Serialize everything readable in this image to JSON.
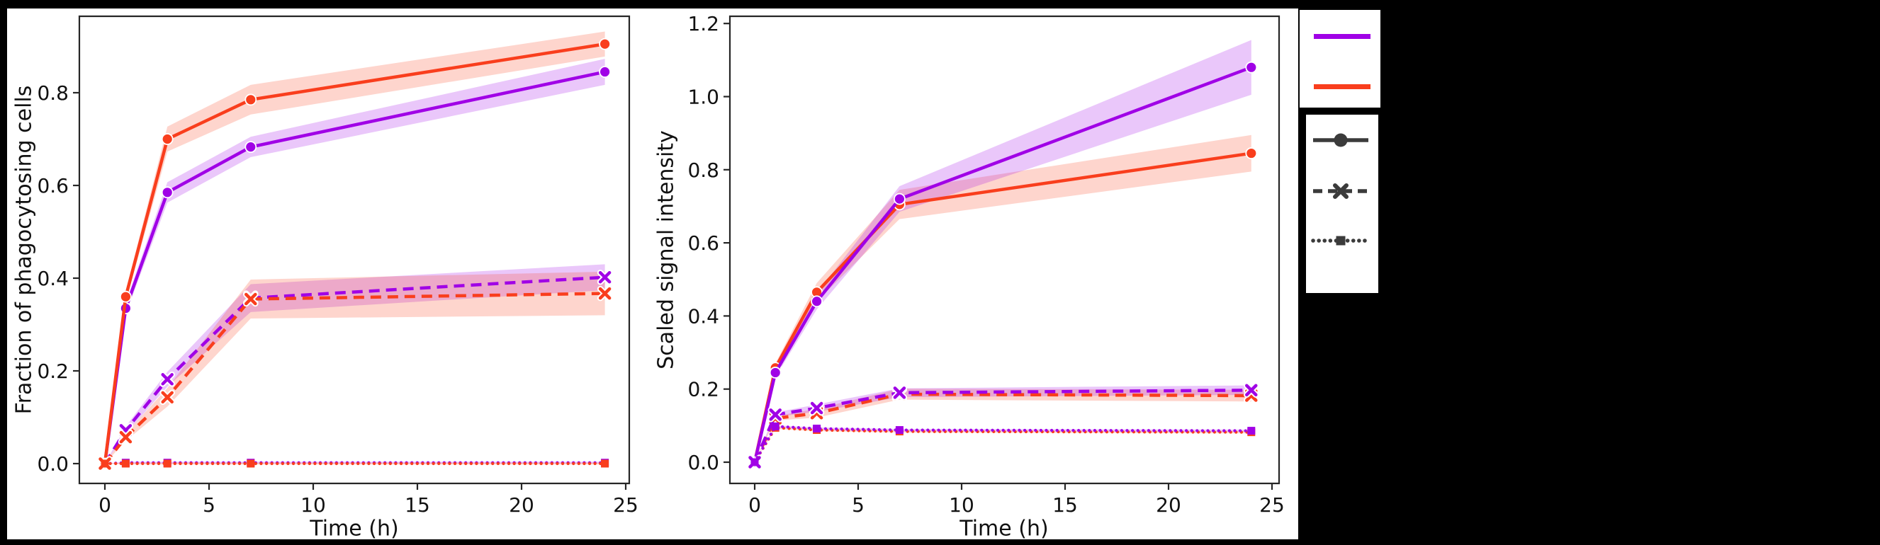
{
  "colors": {
    "background": "#000000",
    "figure": "#ffffff",
    "axis": "#262626",
    "text": "#111111",
    "purple": "#a001e6",
    "orange": "#f93e1d",
    "legend_dark": "#3b3b3b"
  },
  "chart_data": [
    {
      "type": "line",
      "xlabel": "Time (h)",
      "ylabel": "Fraction of phagocytosing cells",
      "x": [
        0,
        1,
        3,
        7,
        24
      ],
      "xticks": [
        "0",
        "5",
        "10",
        "15",
        "20",
        "25"
      ],
      "yticks": [
        "0.0",
        "0.2",
        "0.4",
        "0.6",
        "0.8"
      ],
      "xlim": [
        -1.2,
        25.2
      ],
      "ylim": [
        0,
        0.965
      ],
      "grid": false,
      "series": [
        {
          "name": "purple-solid-circle",
          "color": "purple",
          "linestyle": "solid",
          "marker": "circle",
          "values": [
            0,
            0.335,
            0.585,
            0.683,
            0.845
          ],
          "band": [
            0,
            0.012,
            0.022,
            0.022,
            0.028
          ]
        },
        {
          "name": "orange-solid-circle",
          "color": "orange",
          "linestyle": "solid",
          "marker": "circle",
          "values": [
            0,
            0.36,
            0.7,
            0.785,
            0.905
          ],
          "band": [
            0,
            0.012,
            0.027,
            0.032,
            0.027
          ]
        },
        {
          "name": "purple-dashed-x",
          "color": "purple",
          "linestyle": "dashed",
          "marker": "x",
          "values": [
            0,
            0.072,
            0.182,
            0.357,
            0.402
          ],
          "band": [
            0,
            0.008,
            0.016,
            0.03,
            0.028
          ]
        },
        {
          "name": "orange-dashed-x",
          "color": "orange",
          "linestyle": "dashed",
          "marker": "x",
          "values": [
            0,
            0.057,
            0.143,
            0.355,
            0.367
          ],
          "band": [
            0,
            0.008,
            0.02,
            0.042,
            0.047
          ]
        },
        {
          "name": "purple-dotted-square",
          "color": "purple",
          "linestyle": "dotted",
          "marker": "square",
          "values": [
            0,
            0.002,
            0.002,
            0.002,
            0.002
          ],
          "band": [
            0,
            0.002,
            0.002,
            0.002,
            0.002
          ]
        },
        {
          "name": "orange-dotted-square",
          "color": "orange",
          "linestyle": "dotted",
          "marker": "square",
          "values": [
            0,
            0.0,
            0.0,
            0.0,
            0.0
          ],
          "band": [
            0,
            0.002,
            0.002,
            0.002,
            0.002
          ]
        }
      ]
    },
    {
      "type": "line",
      "xlabel": "Time (h)",
      "ylabel": "Scaled signal intensity",
      "x": [
        0,
        1,
        3,
        7,
        24
      ],
      "xticks": [
        "0",
        "5",
        "10",
        "15",
        "20",
        "25"
      ],
      "yticks": [
        "0.0",
        "0.2",
        "0.4",
        "0.6",
        "0.8",
        "1.0",
        "1.2"
      ],
      "xlim": [
        -1.2,
        25.2
      ],
      "ylim": [
        0,
        1.278
      ],
      "grid": false,
      "series": [
        {
          "name": "orange-solid-circle",
          "color": "orange",
          "linestyle": "solid",
          "marker": "circle",
          "values": [
            0,
            0.258,
            0.465,
            0.705,
            0.845
          ],
          "band": [
            0,
            0.012,
            0.025,
            0.04,
            0.05
          ]
        },
        {
          "name": "purple-solid-circle",
          "color": "purple",
          "linestyle": "solid",
          "marker": "circle",
          "values": [
            0,
            0.245,
            0.44,
            0.72,
            1.08
          ],
          "band": [
            0,
            0.012,
            0.022,
            0.035,
            0.075
          ]
        },
        {
          "name": "orange-dashed-x",
          "color": "orange",
          "linestyle": "dashed",
          "marker": "x",
          "values": [
            0,
            0.12,
            0.134,
            0.186,
            0.182
          ],
          "band": [
            0,
            0.006,
            0.012,
            0.015,
            0.016
          ]
        },
        {
          "name": "purple-dashed-x",
          "color": "purple",
          "linestyle": "dashed",
          "marker": "x",
          "values": [
            0,
            0.13,
            0.148,
            0.19,
            0.197
          ],
          "band": [
            0,
            0.006,
            0.01,
            0.012,
            0.013
          ]
        },
        {
          "name": "orange-dotted-square",
          "color": "orange",
          "linestyle": "dotted",
          "marker": "square",
          "values": [
            0,
            0.094,
            0.088,
            0.084,
            0.082
          ],
          "band": [
            0,
            0.003,
            0.003,
            0.003,
            0.003
          ]
        },
        {
          "name": "purple-dotted-square",
          "color": "purple",
          "linestyle": "dotted",
          "marker": "square",
          "values": [
            0,
            0.098,
            0.092,
            0.088,
            0.086
          ],
          "band": [
            0,
            0.003,
            0.003,
            0.003,
            0.003
          ]
        }
      ]
    }
  ],
  "legend_colors": {
    "items": [
      {
        "name": "purple-line",
        "color": "purple"
      },
      {
        "name": "orange-line",
        "color": "orange"
      }
    ]
  },
  "legend_styles": {
    "items": [
      {
        "name": "solid-line-circle-marker",
        "linestyle": "solid",
        "marker": "circle"
      },
      {
        "name": "dashed-line-x-marker",
        "linestyle": "dashed",
        "marker": "x"
      },
      {
        "name": "dotted-line-square-marker",
        "linestyle": "dotted",
        "marker": "square"
      }
    ]
  }
}
